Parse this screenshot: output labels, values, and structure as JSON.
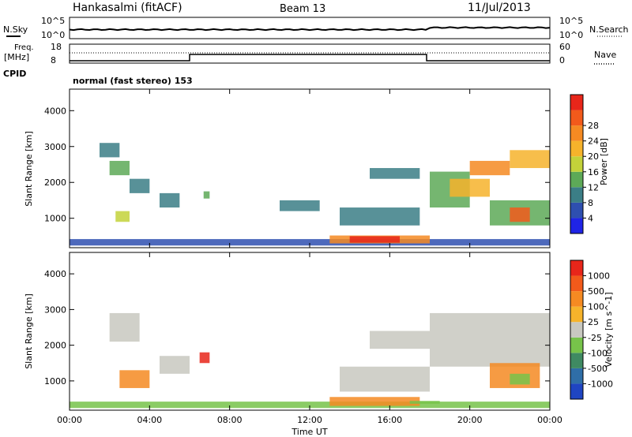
{
  "header": {
    "station": "Hankasalmi (fitACF)",
    "beam": "Beam 13",
    "date": "11/Jul/2013"
  },
  "nsky_panel": {
    "left_label": "N.Sky",
    "right_label": "N.Search",
    "left_ticks": [
      "10^5",
      "10^0"
    ],
    "right_ticks": [
      "10^5",
      "10^0"
    ]
  },
  "freq_panel": {
    "left_label_1": "Freq.",
    "left_label_2": "[MHz]",
    "cpid_label": "CPID",
    "right_label": "Nave",
    "left_ticks": [
      "18",
      "8"
    ],
    "right_ticks": [
      "60",
      "0"
    ],
    "cpid_text": "normal (fast stereo) 153"
  },
  "chart_data": [
    {
      "type": "heatmap",
      "name": "power",
      "xlabel": "Time UT",
      "ylabel": "Slant Range [km]",
      "ylim": [
        180,
        4600
      ],
      "y_ticks": [
        "1000",
        "2000",
        "3000",
        "4000"
      ],
      "colorbar": {
        "label": "Power [dB]",
        "ticks": [
          "4",
          "8",
          "12",
          "16",
          "20",
          "24",
          "28"
        ],
        "colors": [
          "#1f24e6",
          "#2e4fb0",
          "#3b7e86",
          "#5da957",
          "#c3d23a",
          "#f6b32b",
          "#f58a22",
          "#f25a1b",
          "#e8261a"
        ]
      },
      "regions": [
        {
          "t0": 0.0,
          "t1": 24.0,
          "r0": 240,
          "r1": 420,
          "level": 1
        },
        {
          "t0": 1.5,
          "t1": 2.5,
          "r0": 2700,
          "r1": 3100,
          "level": 2
        },
        {
          "t0": 2.0,
          "t1": 3.0,
          "r0": 2200,
          "r1": 2600,
          "level": 3
        },
        {
          "t0": 2.3,
          "t1": 3.0,
          "r0": 900,
          "r1": 1200,
          "level": 4
        },
        {
          "t0": 3.0,
          "t1": 4.0,
          "r0": 1700,
          "r1": 2100,
          "level": 2
        },
        {
          "t0": 4.5,
          "t1": 5.5,
          "r0": 1300,
          "r1": 1700,
          "level": 2
        },
        {
          "t0": 6.7,
          "t1": 7.0,
          "r0": 1550,
          "r1": 1750,
          "level": 3
        },
        {
          "t0": 10.5,
          "t1": 12.5,
          "r0": 1200,
          "r1": 1500,
          "level": 2
        },
        {
          "t0": 13.0,
          "t1": 18.0,
          "r0": 300,
          "r1": 520,
          "level": 6
        },
        {
          "t0": 14.0,
          "t1": 16.5,
          "r0": 320,
          "r1": 500,
          "level": 8
        },
        {
          "t0": 13.5,
          "t1": 17.5,
          "r0": 800,
          "r1": 1300,
          "level": 2
        },
        {
          "t0": 15.0,
          "t1": 17.5,
          "r0": 2100,
          "r1": 2400,
          "level": 2
        },
        {
          "t0": 18.0,
          "t1": 20.0,
          "r0": 1300,
          "r1": 2300,
          "level": 3
        },
        {
          "t0": 19.0,
          "t1": 21.0,
          "r0": 1600,
          "r1": 2100,
          "level": 5
        },
        {
          "t0": 20.0,
          "t1": 22.0,
          "r0": 2200,
          "r1": 2600,
          "level": 6
        },
        {
          "t0": 22.0,
          "t1": 24.0,
          "r0": 2400,
          "r1": 2900,
          "level": 5
        },
        {
          "t0": 21.0,
          "t1": 24.0,
          "r0": 800,
          "r1": 1500,
          "level": 3
        },
        {
          "t0": 22.0,
          "t1": 23.0,
          "r0": 900,
          "r1": 1300,
          "level": 7
        }
      ]
    },
    {
      "type": "heatmap",
      "name": "velocity",
      "xlabel": "Time UT",
      "ylabel": "Slant Range [km]",
      "ylim": [
        180,
        4600
      ],
      "y_ticks": [
        "1000",
        "2000",
        "3000",
        "4000"
      ],
      "colorbar": {
        "label": "Velocity [m s^-1]",
        "ticks": [
          "1000",
          "500",
          "100",
          "25",
          "-25",
          "-100",
          "-500",
          "-1000"
        ],
        "colors": [
          "#1f45c2",
          "#2f6ea7",
          "#3f8a62",
          "#77c34a",
          "#c8c8c0",
          "#f6b32b",
          "#f58a22",
          "#f25a1b",
          "#e8261a"
        ]
      },
      "regions": [
        {
          "t0": 0.0,
          "t1": 24.0,
          "r0": 240,
          "r1": 420,
          "level": 3
        },
        {
          "t0": 2.0,
          "t1": 3.5,
          "r0": 2100,
          "r1": 2900,
          "level": 4
        },
        {
          "t0": 2.5,
          "t1": 4.0,
          "r0": 800,
          "r1": 1300,
          "level": 6
        },
        {
          "t0": 4.5,
          "t1": 6.0,
          "r0": 1200,
          "r1": 1700,
          "level": 4
        },
        {
          "t0": 6.5,
          "t1": 7.0,
          "r0": 1500,
          "r1": 1800,
          "level": 8
        },
        {
          "t0": 13.0,
          "t1": 17.5,
          "r0": 300,
          "r1": 550,
          "level": 6
        },
        {
          "t0": 17.0,
          "t1": 18.5,
          "r0": 360,
          "r1": 440,
          "level": 3
        },
        {
          "t0": 13.5,
          "t1": 18.0,
          "r0": 700,
          "r1": 1400,
          "level": 4
        },
        {
          "t0": 15.0,
          "t1": 18.0,
          "r0": 1900,
          "r1": 2400,
          "level": 4
        },
        {
          "t0": 18.0,
          "t1": 24.0,
          "r0": 1400,
          "r1": 2900,
          "level": 4
        },
        {
          "t0": 21.0,
          "t1": 23.5,
          "r0": 800,
          "r1": 1500,
          "level": 6
        },
        {
          "t0": 22.0,
          "t1": 23.0,
          "r0": 900,
          "r1": 1200,
          "level": 3
        }
      ]
    }
  ],
  "time_axis": {
    "label": "Time UT",
    "ticks": [
      "00:00",
      "04:00",
      "08:00",
      "12:00",
      "16:00",
      "20:00",
      "00:00"
    ]
  }
}
